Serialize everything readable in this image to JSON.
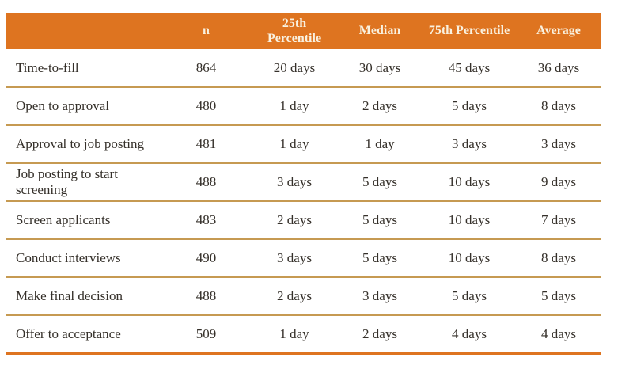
{
  "colors": {
    "header_bg": "#DE7420",
    "header_text": "#F9F1DF",
    "divider": "#C69A52",
    "bottom_rule": "#DE7420",
    "body_text": "#35302A"
  },
  "table": {
    "columns": [
      "",
      "n",
      "25th Percentile",
      "Median",
      "75th Percentile",
      "Average"
    ],
    "rows": [
      {
        "label": "Time-to-fill",
        "values": [
          "864",
          "20 days",
          "30 days",
          "45 days",
          "36 days"
        ]
      },
      {
        "label": "Open to approval",
        "values": [
          "480",
          "1 day",
          "2 days",
          "5 days",
          "8 days"
        ]
      },
      {
        "label": "Approval to job posting",
        "values": [
          "481",
          "1 day",
          "1 day",
          "3 days",
          "3 days"
        ]
      },
      {
        "label": "Job posting to start screening",
        "values": [
          "488",
          "3 days",
          "5 days",
          "10 days",
          "9 days"
        ]
      },
      {
        "label": "Screen applicants",
        "values": [
          "483",
          "2 days",
          "5 days",
          "10 days",
          "7 days"
        ]
      },
      {
        "label": "Conduct interviews",
        "values": [
          "490",
          "3 days",
          "5 days",
          "10 days",
          "8 days"
        ]
      },
      {
        "label": "Make final decision",
        "values": [
          "488",
          "2 days",
          "3 days",
          "5 days",
          "5 days"
        ]
      },
      {
        "label": "Offer to acceptance",
        "values": [
          "509",
          "1 day",
          "2 days",
          "4 days",
          "4 days"
        ]
      }
    ]
  },
  "chart_data": {
    "type": "table",
    "title": "",
    "columns": [
      "",
      "n",
      "25th Percentile",
      "Median",
      "75th Percentile",
      "Average"
    ],
    "rows": [
      [
        "Time-to-fill",
        "864",
        "20 days",
        "30 days",
        "45 days",
        "36 days"
      ],
      [
        "Open to approval",
        "480",
        "1 day",
        "2 days",
        "5 days",
        "8 days"
      ],
      [
        "Approval to job posting",
        "481",
        "1 day",
        "1 day",
        "3 days",
        "3 days"
      ],
      [
        "Job posting to start screening",
        "488",
        "3 days",
        "5 days",
        "10 days",
        "9 days"
      ],
      [
        "Screen applicants",
        "483",
        "2 days",
        "5 days",
        "10 days",
        "7 days"
      ],
      [
        "Conduct interviews",
        "490",
        "3 days",
        "5 days",
        "10 days",
        "8 days"
      ],
      [
        "Make final decision",
        "488",
        "2 days",
        "3 days",
        "5 days",
        "5 days"
      ],
      [
        "Offer to acceptance",
        "509",
        "1 day",
        "2 days",
        "4 days",
        "4 days"
      ]
    ]
  }
}
